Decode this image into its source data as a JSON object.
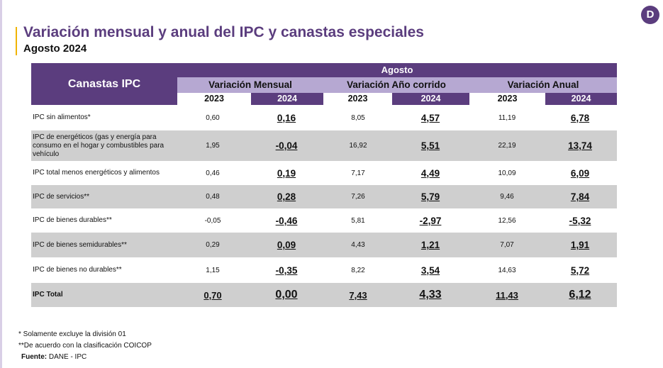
{
  "header": {
    "title": "Variación mensual y anual del IPC y canastas especiales",
    "subtitle": "Agosto 2024",
    "logo_letter": "D"
  },
  "table": {
    "main_header": "Canastas IPC",
    "month_header": "Agosto",
    "groups": [
      "Variación Mensual",
      "Variación Año corrido",
      "Variación Anual"
    ],
    "years": [
      "2023",
      "2024",
      "2023",
      "2024",
      "2023",
      "2024"
    ],
    "rows": [
      {
        "label": "IPC sin alimentos*",
        "values": [
          "0,60",
          "0,16",
          "8,05",
          "4,57",
          "11,19",
          "6,78"
        ]
      },
      {
        "label": "IPC de energéticos (gas y energía para consumo en el hogar y combustibles para vehículo",
        "values": [
          "1,95",
          "-0,04",
          "16,92",
          "5,51",
          "22,19",
          "13,74"
        ]
      },
      {
        "label": "IPC total menos energéticos y alimentos",
        "values": [
          "0,46",
          "0,19",
          "7,17",
          "4,49",
          "10,09",
          "6,09"
        ]
      },
      {
        "label": "IPC de servicios**",
        "values": [
          "0,48",
          "0,28",
          "7,26",
          "5,79",
          "9,46",
          "7,84"
        ]
      },
      {
        "label": "IPC de bienes durables**",
        "values": [
          "-0,05",
          "-0,46",
          "5,81",
          "-2,97",
          "12,56",
          "-5,32"
        ]
      },
      {
        "label": "IPC de bienes semidurables**",
        "values": [
          "0,29",
          "0,09",
          "4,43",
          "1,21",
          "7,07",
          "1,91"
        ]
      },
      {
        "label": "IPC de bienes no durables**",
        "values": [
          "1,15",
          "-0,35",
          "8,22",
          "3,54",
          "14,63",
          "5,72"
        ]
      },
      {
        "label": "IPC Total",
        "values": [
          "0,70",
          "0,00",
          "7,43",
          "4,33",
          "11,43",
          "6,12"
        ]
      }
    ]
  },
  "notes": {
    "note1": "* Solamente excluye la división 01",
    "note2": "**De acuerdo con la clasificación COICOP",
    "source_label": "Fuente:",
    "source_value": " DANE - IPC"
  },
  "colors": {
    "brand_purple": "#5b3d7e",
    "header_lavender": "#b6a8d2",
    "row_grey": "#cfcfcf",
    "accent_gold": "#f0b400"
  }
}
